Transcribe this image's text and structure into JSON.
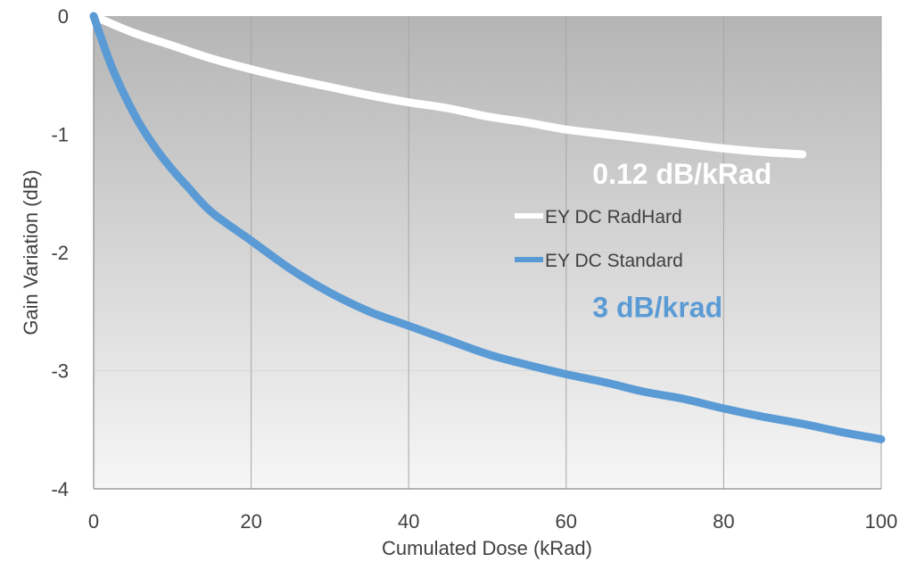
{
  "chart_data": {
    "type": "line",
    "xlabel": "Cumulated Dose (kRad)",
    "ylabel": "Gain Variation (dB)",
    "xlim": [
      0,
      100
    ],
    "ylim": [
      -4,
      0
    ],
    "x_ticks": [
      0,
      20,
      40,
      60,
      80,
      100
    ],
    "y_ticks": [
      0,
      -1,
      -2,
      -3,
      -4
    ],
    "x_tick_labels": [
      "0",
      "20",
      "40",
      "60",
      "80",
      "100"
    ],
    "y_tick_labels": [
      "0",
      "-1",
      "-2",
      "-3",
      "-4"
    ],
    "grid": "vertical",
    "legend_position": "center-right",
    "series": [
      {
        "name": "EY DC RadHard",
        "color": "#ffffff",
        "x": [
          0,
          5,
          10,
          15,
          20,
          25,
          30,
          35,
          40,
          45,
          50,
          55,
          60,
          65,
          70,
          75,
          80,
          85,
          90
        ],
        "values": [
          0,
          -0.14,
          -0.25,
          -0.36,
          -0.45,
          -0.53,
          -0.6,
          -0.67,
          -0.73,
          -0.78,
          -0.85,
          -0.9,
          -0.96,
          -1.0,
          -1.04,
          -1.08,
          -1.12,
          -1.15,
          -1.17
        ]
      },
      {
        "name": "EY DC Standard",
        "color": "#5b9bd5",
        "x": [
          0,
          2,
          4,
          6,
          8,
          10,
          12,
          15,
          20,
          25,
          30,
          35,
          40,
          45,
          50,
          55,
          60,
          65,
          70,
          75,
          80,
          85,
          90,
          95,
          100
        ],
        "values": [
          0,
          -0.38,
          -0.68,
          -0.93,
          -1.13,
          -1.3,
          -1.45,
          -1.66,
          -1.9,
          -2.14,
          -2.34,
          -2.5,
          -2.62,
          -2.74,
          -2.86,
          -2.95,
          -3.03,
          -3.1,
          -3.18,
          -3.24,
          -3.32,
          -3.39,
          -3.45,
          -3.52,
          -3.58
        ]
      }
    ],
    "annotations": [
      {
        "text": "0.12 dB/kRad",
        "color": "#ffffff",
        "x": 63,
        "y": -1.32
      },
      {
        "text": "3 dB/krad",
        "color": "#5b9bd5",
        "x": 63,
        "y": -2.45
      }
    ]
  }
}
